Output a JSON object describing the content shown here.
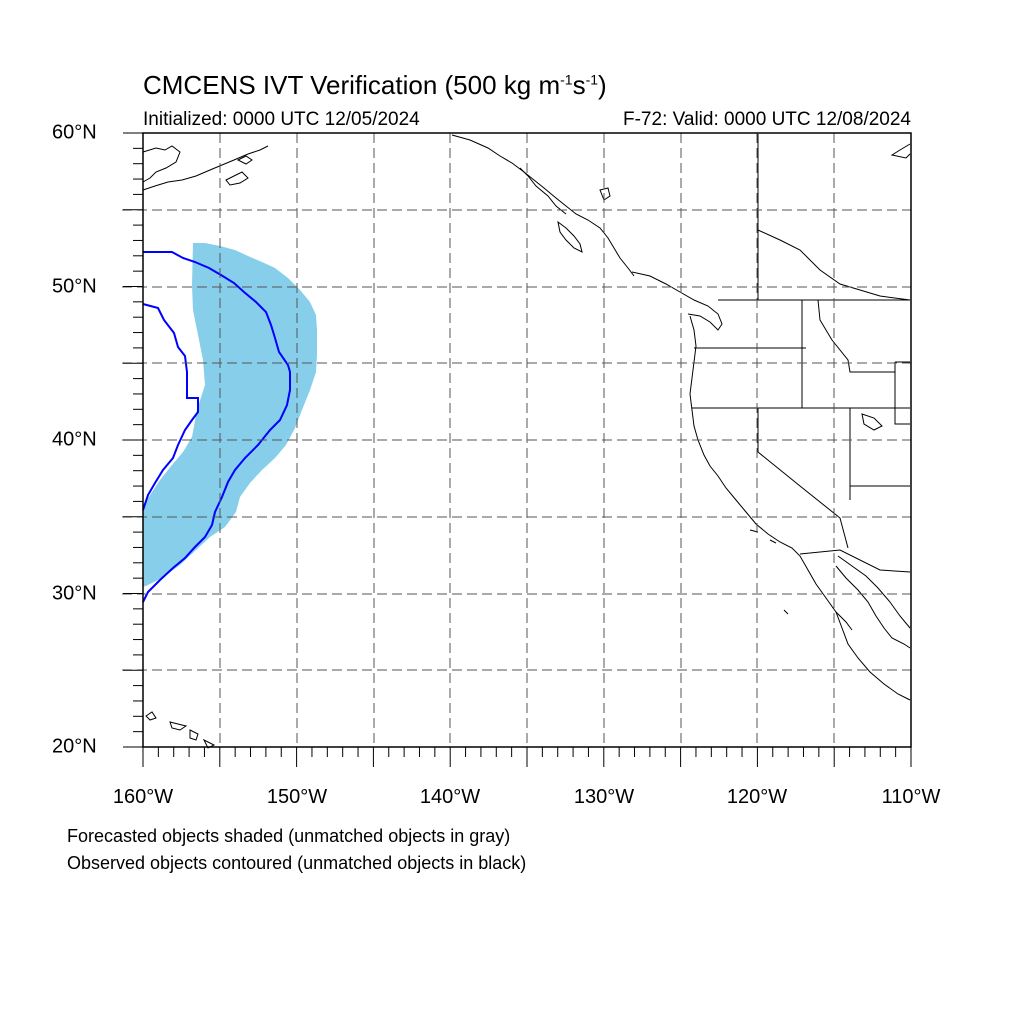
{
  "title": {
    "main": "CMCENS IVT Verification (500 kg m",
    "exp1": "-1",
    "mid": "s",
    "exp2": "-1",
    "end": ")"
  },
  "subtitle_left": "Initialized: 0000 UTC 12/05/2024",
  "subtitle_right": "F-72: Valid: 0000 UTC 12/08/2024",
  "lat_labels": [
    "60°N",
    "50°N",
    "40°N",
    "30°N",
    "20°N"
  ],
  "lon_labels": [
    "160°W",
    "150°W",
    "140°W",
    "130°W",
    "120°W",
    "110°W"
  ],
  "map_extent": {
    "lon": [
      -160,
      -110
    ],
    "lat": [
      20,
      60
    ]
  },
  "colors": {
    "forecast_fill": "#87ceeb",
    "observed_contour": "#0000ff"
  },
  "footer_notes": [
    "Forecasted objects shaded (unmatched objects in gray)",
    "Observed objects contoured (unmatched objects in black)"
  ]
}
